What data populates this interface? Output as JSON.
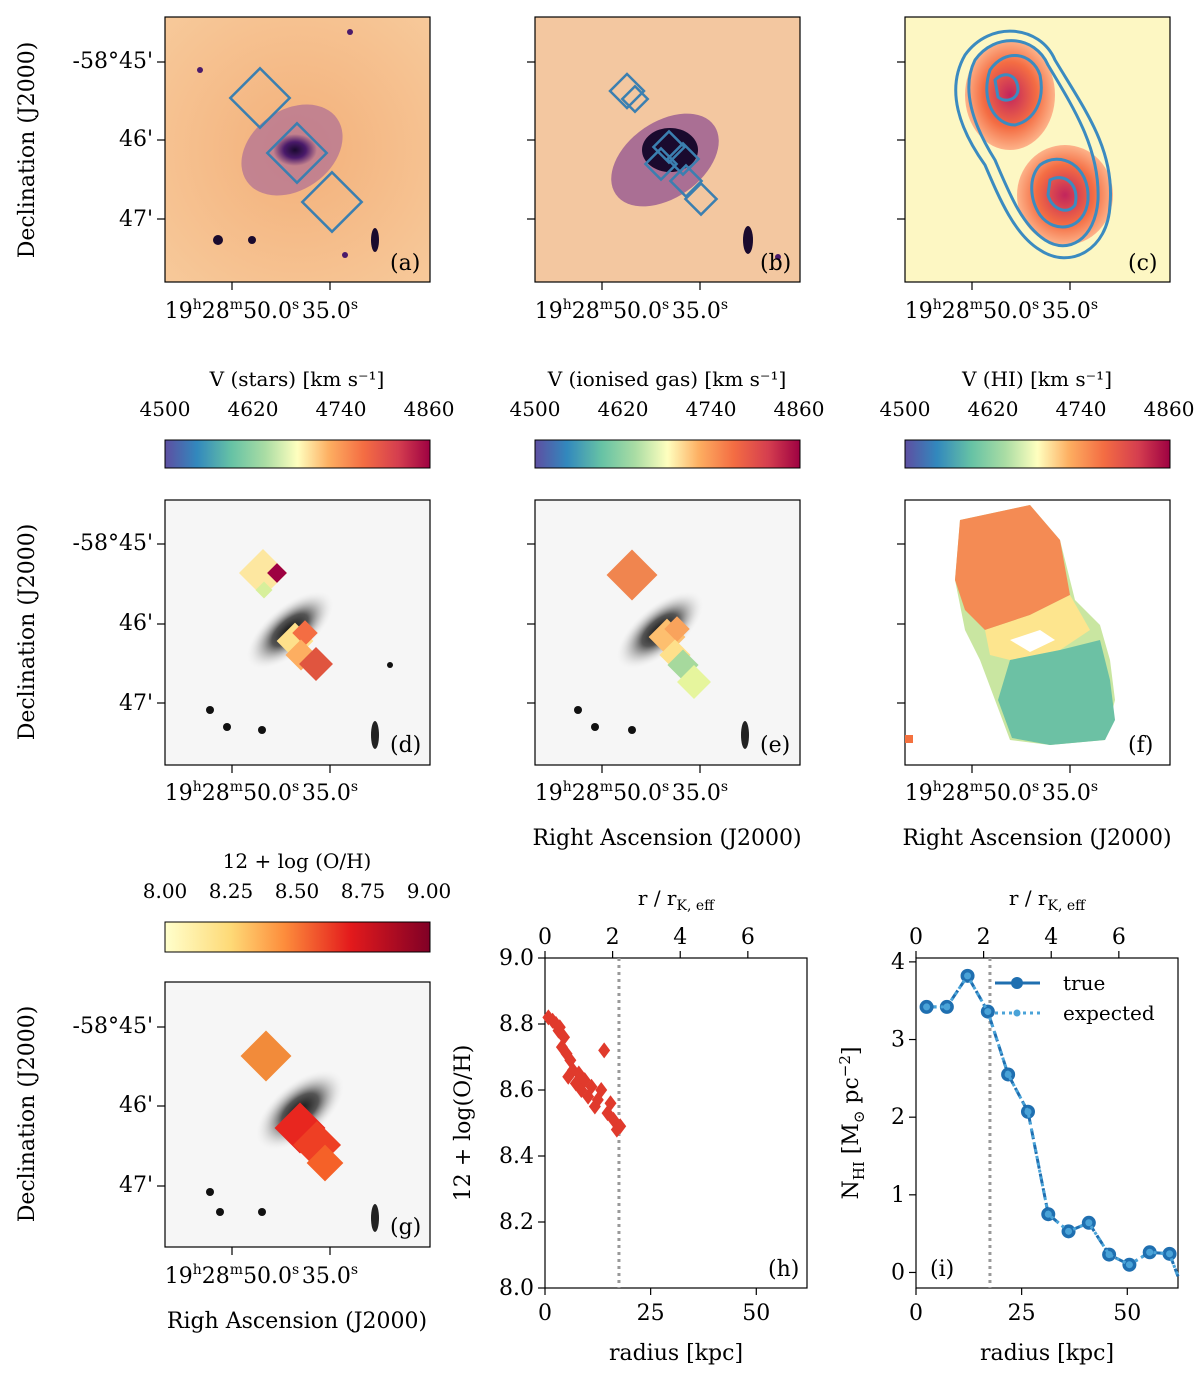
{
  "labels": {
    "dec_axis": "Declination (J2000)",
    "ra_axis": "Right Ascension (J2000)",
    "ra_axis_typo": "Righ Ascension (J2000)",
    "dec_ticks": [
      "-58°45'",
      "46'",
      "47'"
    ],
    "ra_tick_main": "19h28m50.0s",
    "ra_tick_2": "35.0s"
  },
  "panels": {
    "a": "(a)",
    "b": "(b)",
    "c": "(c)",
    "d": "(d)",
    "e": "(e)",
    "f": "(f)",
    "g": "(g)",
    "h": "(h)",
    "i": "(i)"
  },
  "colorbars": {
    "v_stars": {
      "title": "V (stars) [km s⁻¹]",
      "ticks": [
        "4500",
        "4620",
        "4740",
        "4860"
      ]
    },
    "v_gas": {
      "title": "V (ionised gas) [km s⁻¹]",
      "ticks": [
        "4500",
        "4620",
        "4740",
        "4860"
      ]
    },
    "v_hi": {
      "title": "V (HI) [km s⁻¹]",
      "ticks": [
        "4500",
        "4620",
        "4740",
        "4860"
      ]
    },
    "oh": {
      "title": "12 + log (O/H)",
      "ticks": [
        "8.00",
        "8.25",
        "8.50",
        "8.75",
        "9.00"
      ]
    }
  },
  "chart_data": [
    {
      "type": "scatter",
      "panel": "h",
      "title": "",
      "xlabel": "radius [kpc]",
      "ylabel": "12 + log(O/H)",
      "top_xlabel": "r / r_K,eff",
      "xlim": [
        0,
        62
      ],
      "ylim": [
        8.0,
        9.0
      ],
      "xticks": [
        0,
        25,
        50
      ],
      "yticks": [
        "8.0",
        "8.2",
        "8.4",
        "8.6",
        "8.8",
        "9.0"
      ],
      "top_ticks": [
        "0",
        "2",
        "4",
        "6"
      ],
      "top_scale_kpc_per_unit": 8.0,
      "vline_x": 17.5,
      "marker_color": "#e03a2c",
      "x": [
        0.8,
        1.8,
        2.6,
        3.2,
        4.0,
        4.5,
        5.1,
        6.0,
        6.6,
        7.3,
        8.0,
        8.6,
        9.4,
        10.2,
        11.0,
        11.8,
        12.5,
        13.3,
        14.0,
        14.8,
        15.5,
        16.2,
        17.0,
        17.8,
        5.5,
        3.5
      ],
      "y": [
        8.82,
        8.81,
        8.8,
        8.78,
        8.73,
        8.76,
        8.71,
        8.69,
        8.66,
        8.62,
        8.65,
        8.6,
        8.63,
        8.58,
        8.61,
        8.55,
        8.57,
        8.6,
        8.72,
        8.53,
        8.56,
        8.51,
        8.48,
        8.49,
        8.64,
        8.79
      ]
    },
    {
      "type": "line",
      "panel": "i",
      "title": "",
      "xlabel": "radius [kpc]",
      "ylabel": "N_HI [M⊙ pc⁻²]",
      "top_xlabel": "r / r_K,eff",
      "xlim": [
        0,
        62
      ],
      "ylim": [
        -0.2,
        4.05
      ],
      "xticks": [
        0,
        25,
        50
      ],
      "yticks": [
        "0",
        "1",
        "2",
        "3",
        "4"
      ],
      "top_ticks": [
        "0",
        "2",
        "4",
        "6"
      ],
      "top_scale_kpc_per_unit": 8.0,
      "vline_x": 17.5,
      "series": [
        {
          "name": "true",
          "color": "#1f6fb0",
          "x": [
            2.5,
            7.3,
            12.2,
            17.0,
            21.8,
            26.5,
            31.3,
            36.1,
            40.9,
            45.7,
            50.5,
            55.3,
            60.0,
            62.5
          ],
          "y": [
            3.42,
            3.42,
            3.82,
            3.36,
            2.55,
            2.07,
            0.75,
            0.53,
            0.64,
            0.23,
            0.1,
            0.26,
            0.24,
            -0.05
          ]
        },
        {
          "name": "expected",
          "color": "#4aa3d8",
          "x": [
            2.5,
            7.3,
            12.2,
            17.0,
            21.8,
            26.5,
            31.3,
            36.1,
            40.9,
            45.7,
            50.5,
            55.3,
            60.0,
            62.5
          ],
          "y": [
            3.42,
            3.42,
            3.82,
            3.36,
            2.55,
            2.07,
            0.75,
            0.53,
            0.64,
            0.23,
            0.1,
            0.26,
            0.24,
            -0.05
          ]
        }
      ]
    }
  ]
}
